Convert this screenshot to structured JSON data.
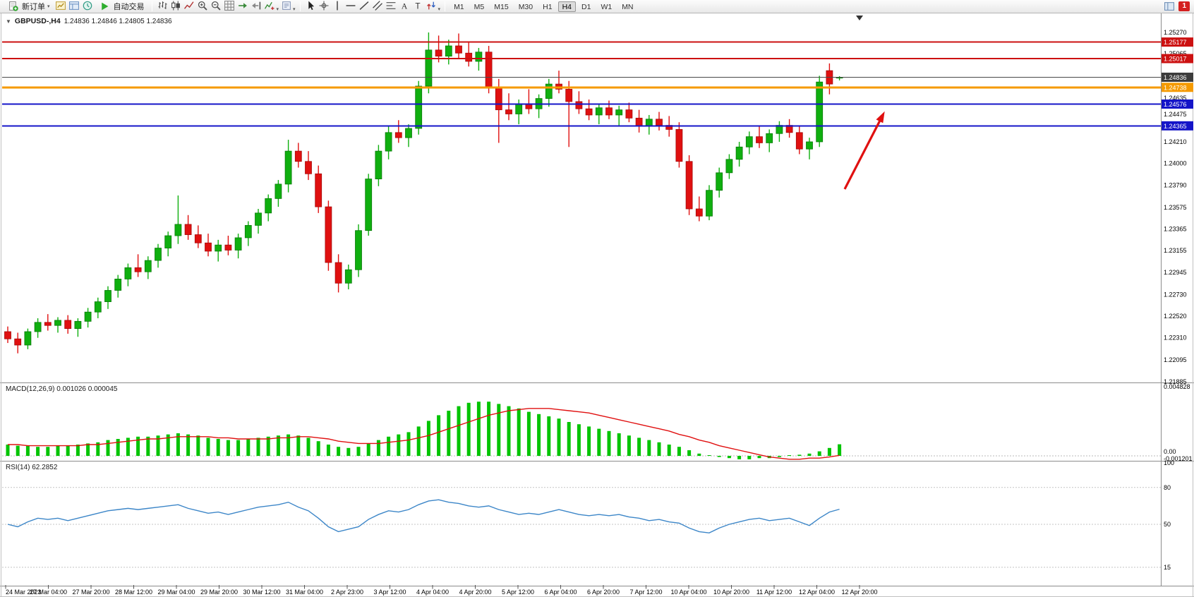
{
  "toolbar": {
    "new_order_label": "新订单",
    "auto_trading_label": "自动交易",
    "quick_icons": [
      "new-chart-icon",
      "profiles-icon",
      "market-watch-icon"
    ],
    "chart_tools": [
      "bar-chart-icon",
      "candlestick-chart-icon",
      "line-chart-icon",
      "zoom-in-icon",
      "zoom-out-icon",
      "grid-icon",
      "auto-scroll-icon",
      "chart-shift-icon",
      "indicators-icon",
      "templates-icon"
    ],
    "draw_tools": [
      "cursor-icon",
      "crosshair-icon",
      "vertical-line-icon",
      "horizontal-line-icon",
      "trendline-icon",
      "equidistant-channel-icon",
      "fibonacci-icon",
      "text-icon",
      "label-icon",
      "arrows-icon"
    ],
    "timeframes": [
      "M1",
      "M5",
      "M15",
      "M30",
      "H1",
      "H4",
      "D1",
      "W1",
      "MN"
    ],
    "active_timeframe": "H4",
    "right_icons": [
      "layout-icon"
    ],
    "notification_badge": "1"
  },
  "chart": {
    "symbol_title": "GBPUSD-,H4",
    "ohlc_text": "1.24836 1.24846 1.24805 1.24836",
    "open": "1.24836",
    "high": "1.24846",
    "low": "1.24805",
    "close": "1.24836"
  },
  "indicators": {
    "macd_label": "MACD(12,26,9) 0.001026 0.000045",
    "rsi_label": "RSI(14) 62.2852"
  },
  "price_axis": {
    "gridlines": [
      {
        "label": "1.25270",
        "price": 1.2527
      },
      {
        "label": "1.25065",
        "price": 1.25065
      },
      {
        "label": "1.24635",
        "price": 1.24635
      },
      {
        "label": "1.24475",
        "price": 1.24475
      },
      {
        "label": "1.24210",
        "price": 1.2421
      },
      {
        "label": "1.24000",
        "price": 1.24
      },
      {
        "label": "1.23790",
        "price": 1.2379
      },
      {
        "label": "1.23575",
        "price": 1.23575
      },
      {
        "label": "1.23365",
        "price": 1.23365
      },
      {
        "label": "1.23155",
        "price": 1.23155
      },
      {
        "label": "1.22945",
        "price": 1.22945
      },
      {
        "label": "1.22730",
        "price": 1.2273
      },
      {
        "label": "1.22520",
        "price": 1.2252
      },
      {
        "label": "1.22310",
        "price": 1.2231
      },
      {
        "label": "1.22095",
        "price": 1.22095
      },
      {
        "label": "1.21885",
        "price": 1.21885
      }
    ],
    "badges": [
      {
        "label": "1.25177",
        "price": 1.25177,
        "color": "#cc1111"
      },
      {
        "label": "1.25017",
        "price": 1.25017,
        "color": "#cc1111"
      },
      {
        "label": "1.24836",
        "price": 1.24836,
        "color": "#3c3c3c"
      },
      {
        "label": "1.24738",
        "price": 1.24738,
        "color": "#f59a00"
      },
      {
        "label": "1.24576",
        "price": 1.24576,
        "color": "#1414c8"
      },
      {
        "label": "1.24365",
        "price": 1.24365,
        "color": "#1414c8"
      }
    ]
  },
  "chart_data": {
    "type": "candlestick",
    "symbol": "GBPUSD",
    "timeframe": "H4",
    "up_color": "#0faf0f",
    "down_color": "#e01010",
    "candles": [
      [
        1.2237,
        1.2242,
        1.2226,
        1.223
      ],
      [
        1.223,
        1.2236,
        1.2216,
        1.2224
      ],
      [
        1.2224,
        1.224,
        1.222,
        1.2237
      ],
      [
        1.2237,
        1.225,
        1.2231,
        1.2246
      ],
      [
        1.2246,
        1.2254,
        1.2238,
        1.2243
      ],
      [
        1.2243,
        1.2251,
        1.2236,
        1.2248
      ],
      [
        1.2248,
        1.2253,
        1.2235,
        1.224
      ],
      [
        1.224,
        1.225,
        1.2232,
        1.2247
      ],
      [
        1.2247,
        1.226,
        1.2241,
        1.2256
      ],
      [
        1.2256,
        1.227,
        1.225,
        1.2266
      ],
      [
        1.2266,
        1.2281,
        1.2259,
        1.2277
      ],
      [
        1.2277,
        1.2292,
        1.227,
        1.2288
      ],
      [
        1.2288,
        1.2303,
        1.2281,
        1.2299
      ],
      [
        1.2299,
        1.2312,
        1.229,
        1.2295
      ],
      [
        1.2295,
        1.231,
        1.2288,
        1.2306
      ],
      [
        1.2306,
        1.2322,
        1.2299,
        1.2318
      ],
      [
        1.2318,
        1.2334,
        1.231,
        1.233
      ],
      [
        1.233,
        1.2369,
        1.2322,
        1.2341
      ],
      [
        1.2341,
        1.235,
        1.2326,
        1.2331
      ],
      [
        1.2331,
        1.234,
        1.2318,
        1.2323
      ],
      [
        1.2323,
        1.2332,
        1.231,
        1.2315
      ],
      [
        1.2315,
        1.2326,
        1.2305,
        1.2321
      ],
      [
        1.2321,
        1.233,
        1.2311,
        1.2316
      ],
      [
        1.2316,
        1.2332,
        1.2308,
        1.2328
      ],
      [
        1.2328,
        1.2344,
        1.232,
        1.234
      ],
      [
        1.234,
        1.2356,
        1.2332,
        1.2352
      ],
      [
        1.2352,
        1.237,
        1.2344,
        1.2366
      ],
      [
        1.2366,
        1.2384,
        1.2358,
        1.238
      ],
      [
        1.238,
        1.2423,
        1.2372,
        1.2412
      ],
      [
        1.2412,
        1.242,
        1.2396,
        1.2402
      ],
      [
        1.2402,
        1.2412,
        1.2384,
        1.239
      ],
      [
        1.239,
        1.2398,
        1.2352,
        1.2358
      ],
      [
        1.2358,
        1.2364,
        1.2296,
        1.2304
      ],
      [
        1.2304,
        1.2312,
        1.2275,
        1.2284
      ],
      [
        1.2284,
        1.2302,
        1.2278,
        1.2297
      ],
      [
        1.2297,
        1.2341,
        1.229,
        1.2335
      ],
      [
        1.2335,
        1.239,
        1.233,
        1.2385
      ],
      [
        1.2385,
        1.2418,
        1.2378,
        1.2412
      ],
      [
        1.2412,
        1.2436,
        1.2404,
        1.243
      ],
      [
        1.243,
        1.2442,
        1.242,
        1.2425
      ],
      [
        1.2425,
        1.2438,
        1.2416,
        1.2434
      ],
      [
        1.2434,
        1.248,
        1.2428,
        1.2475
      ],
      [
        1.2475,
        1.2527,
        1.2468,
        1.251
      ],
      [
        1.251,
        1.2524,
        1.2498,
        1.2504
      ],
      [
        1.2504,
        1.252,
        1.2496,
        1.2514
      ],
      [
        1.2514,
        1.2526,
        1.2502,
        1.2507
      ],
      [
        1.2507,
        1.2518,
        1.2494,
        1.2499
      ],
      [
        1.2499,
        1.2512,
        1.249,
        1.2508
      ],
      [
        1.2508,
        1.2514,
        1.2468,
        1.2474
      ],
      [
        1.2474,
        1.2482,
        1.242,
        1.2452
      ],
      [
        1.2452,
        1.2468,
        1.2442,
        1.2448
      ],
      [
        1.2448,
        1.2462,
        1.2438,
        1.2458
      ],
      [
        1.2458,
        1.2472,
        1.2448,
        1.2453
      ],
      [
        1.2453,
        1.2467,
        1.2444,
        1.2463
      ],
      [
        1.2463,
        1.2482,
        1.2455,
        1.2477
      ],
      [
        1.2477,
        1.249,
        1.2468,
        1.2472
      ],
      [
        1.2472,
        1.248,
        1.2416,
        1.246
      ],
      [
        1.246,
        1.247,
        1.2448,
        1.2453
      ],
      [
        1.2453,
        1.2462,
        1.2442,
        1.2447
      ],
      [
        1.2447,
        1.2458,
        1.2438,
        1.2454
      ],
      [
        1.2454,
        1.2461,
        1.2443,
        1.2447
      ],
      [
        1.2447,
        1.2456,
        1.2436,
        1.2452
      ],
      [
        1.2452,
        1.2459,
        1.244,
        1.2444
      ],
      [
        1.2444,
        1.2452,
        1.243,
        1.2436
      ],
      [
        1.2436,
        1.2447,
        1.2428,
        1.2443
      ],
      [
        1.2443,
        1.245,
        1.2432,
        1.2437
      ],
      [
        1.2437,
        1.2446,
        1.2426,
        1.2433
      ],
      [
        1.2433,
        1.244,
        1.2396,
        1.2402
      ],
      [
        1.2402,
        1.2408,
        1.235,
        1.2356
      ],
      [
        1.2356,
        1.2368,
        1.2344,
        1.2349
      ],
      [
        1.2349,
        1.2379,
        1.2345,
        1.2374
      ],
      [
        1.2374,
        1.2396,
        1.2367,
        1.2391
      ],
      [
        1.2391,
        1.2409,
        1.2385,
        1.2404
      ],
      [
        1.2404,
        1.2421,
        1.2397,
        1.2416
      ],
      [
        1.2416,
        1.2431,
        1.2409,
        1.2426
      ],
      [
        1.2426,
        1.2437,
        1.2415,
        1.242
      ],
      [
        1.242,
        1.2433,
        1.2411,
        1.2429
      ],
      [
        1.2429,
        1.2441,
        1.2421,
        1.2437
      ],
      [
        1.2437,
        1.2443,
        1.2425,
        1.243
      ],
      [
        1.243,
        1.2437,
        1.2409,
        1.2414
      ],
      [
        1.2414,
        1.2425,
        1.2404,
        1.2421
      ],
      [
        1.2421,
        1.2485,
        1.2416,
        1.2479
      ],
      [
        1.249,
        1.2497,
        1.2467,
        1.2477
      ],
      [
        1.24836,
        1.24846,
        1.24805,
        1.24836
      ]
    ],
    "hlines": [
      {
        "price": 1.25177,
        "color": "#cc1111",
        "width": 2
      },
      {
        "price": 1.25017,
        "color": "#cc1111",
        "width": 2
      },
      {
        "price": 1.24836,
        "color": "#4a4a4a",
        "width": 1
      },
      {
        "price": 1.24738,
        "color": "#f59a00",
        "width": 3
      },
      {
        "price": 1.24576,
        "color": "#1414c8",
        "width": 2
      },
      {
        "price": 1.24365,
        "color": "#1414c8",
        "width": 2
      }
    ],
    "annotations": [
      {
        "type": "arrow",
        "color": "#e01010",
        "from": [
          1197,
          268
        ],
        "to": [
          1251,
          163
        ]
      }
    ],
    "macd": {
      "scale_labels": [
        "0.004828",
        "0.00",
        "-0.001201"
      ],
      "histogram": [
        0.001,
        0.0009,
        0.0009,
        0.0008,
        0.0008,
        0.0009,
        0.0009,
        0.001,
        0.0011,
        0.0012,
        0.0014,
        0.0015,
        0.0016,
        0.0017,
        0.0017,
        0.0018,
        0.0019,
        0.002,
        0.0019,
        0.0018,
        0.0016,
        0.0015,
        0.0014,
        0.0014,
        0.0015,
        0.0016,
        0.0017,
        0.0018,
        0.0019,
        0.0018,
        0.0016,
        0.0013,
        0.001,
        0.0008,
        0.0007,
        0.0008,
        0.0011,
        0.0014,
        0.0017,
        0.0019,
        0.0021,
        0.0026,
        0.0031,
        0.0036,
        0.004,
        0.0044,
        0.0047,
        0.0048,
        0.0048,
        0.0046,
        0.0044,
        0.0042,
        0.0039,
        0.0037,
        0.0035,
        0.0033,
        0.003,
        0.0028,
        0.0026,
        0.0024,
        0.0022,
        0.002,
        0.0018,
        0.0016,
        0.0014,
        0.0012,
        0.001,
        0.0008,
        0.0005,
        0.0002,
        0.0,
        -0.0001,
        -0.0002,
        -0.0003,
        -0.0003,
        -0.0002,
        -0.0002,
        -0.0001,
        0.0,
        0.0001,
        0.0002,
        0.0004,
        0.0007,
        0.001026
      ],
      "signal": [
        0.001,
        0.001,
        0.0009,
        0.0009,
        0.0009,
        0.0009,
        0.0009,
        0.0009,
        0.001,
        0.001,
        0.0011,
        0.0012,
        0.0013,
        0.0014,
        0.0015,
        0.0015,
        0.0016,
        0.0017,
        0.0017,
        0.0017,
        0.0017,
        0.0016,
        0.0016,
        0.0015,
        0.0015,
        0.0015,
        0.0015,
        0.0016,
        0.0016,
        0.0017,
        0.0017,
        0.0016,
        0.0015,
        0.0013,
        0.0012,
        0.0011,
        0.0011,
        0.0011,
        0.0012,
        0.0013,
        0.0014,
        0.0016,
        0.0018,
        0.0021,
        0.0024,
        0.0027,
        0.003,
        0.0033,
        0.0036,
        0.0038,
        0.004,
        0.0041,
        0.0042,
        0.0042,
        0.0042,
        0.0041,
        0.004,
        0.0039,
        0.0038,
        0.0036,
        0.0034,
        0.0032,
        0.003,
        0.0028,
        0.0026,
        0.0024,
        0.0022,
        0.0019,
        0.0017,
        0.0014,
        0.0012,
        0.0009,
        0.0007,
        0.0005,
        0.0003,
        0.0001,
        -0.0001,
        -0.0002,
        -0.0003,
        -0.0003,
        -0.0002,
        -0.0002,
        -0.0001,
        4.5e-05
      ]
    },
    "rsi": {
      "levels": [
        80,
        50,
        15
      ],
      "scale_labels": [
        {
          "label": "100",
          "value": 100
        },
        {
          "label": "80",
          "value": 80
        },
        {
          "label": "50",
          "value": 50
        },
        {
          "label": "15",
          "value": 15
        }
      ],
      "values": [
        50,
        48,
        52,
        55,
        54,
        55,
        53,
        55,
        57,
        59,
        61,
        62,
        63,
        62,
        63,
        64,
        65,
        66,
        63,
        61,
        59,
        60,
        58,
        60,
        62,
        64,
        65,
        66,
        68,
        64,
        61,
        55,
        48,
        44,
        46,
        48,
        54,
        58,
        61,
        60,
        62,
        66,
        69,
        70,
        68,
        67,
        65,
        64,
        65,
        62,
        60,
        58,
        59,
        58,
        60,
        62,
        60,
        58,
        57,
        58,
        57,
        58,
        56,
        55,
        53,
        54,
        52,
        51,
        47,
        44,
        43,
        47,
        50,
        52,
        54,
        55,
        53,
        54,
        55,
        52,
        49,
        55,
        60,
        62.2852
      ]
    },
    "time_labels": [
      "24 Mar 2023",
      "27 Mar 04:00",
      "27 Mar 20:00",
      "28 Mar 12:00",
      "29 Mar 04:00",
      "29 Mar 20:00",
      "30 Mar 12:00",
      "31 Mar 04:00",
      "2 Apr 23:00",
      "3 Apr 12:00",
      "4 Apr 04:00",
      "4 Apr 20:00",
      "5 Apr 12:00",
      "6 Apr 04:00",
      "6 Apr 20:00",
      "7 Apr 12:00",
      "10 Apr 04:00",
      "10 Apr 20:00",
      "11 Apr 12:00",
      "12 Apr 04:00",
      "12 Apr 20:00"
    ]
  }
}
